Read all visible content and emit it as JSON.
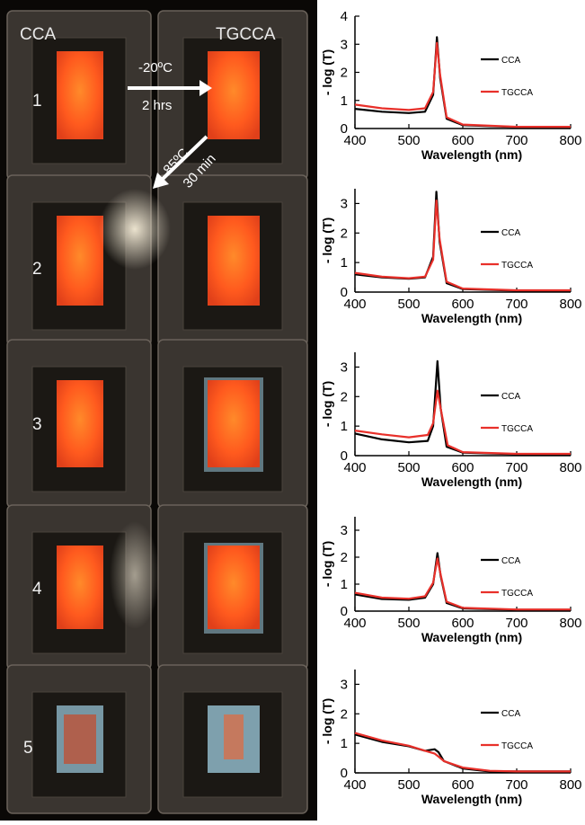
{
  "photo": {
    "col_labels": [
      "CCA",
      "TGCCA"
    ],
    "row_labels": [
      "1",
      "2",
      "3",
      "4",
      "5"
    ],
    "arrow1_line1": "-20ºC",
    "arrow1_line2": "2 hrs",
    "arrow2_line1": "85ºC",
    "arrow2_line2": "30 min",
    "colors": {
      "film": "#ff5a1e",
      "film_hot": "#ff8a2a",
      "frame": "#3a3530",
      "blue_tint": "#8fb8c8"
    }
  },
  "chart_data": [
    {
      "type": "line",
      "xlabel": "Wavelength (nm)",
      "ylabel": "- log (T)",
      "xlim": [
        400,
        800
      ],
      "ylim": [
        0,
        4
      ],
      "xticks": [
        400,
        500,
        600,
        700,
        800
      ],
      "yticks": [
        0,
        1,
        2,
        3,
        4
      ],
      "legend": "right",
      "series": [
        {
          "name": "CCA",
          "color": "#000000",
          "points": [
            [
              400,
              0.7
            ],
            [
              450,
              0.6
            ],
            [
              500,
              0.55
            ],
            [
              530,
              0.6
            ],
            [
              545,
              1.2
            ],
            [
              552,
              3.25
            ],
            [
              558,
              1.8
            ],
            [
              570,
              0.35
            ],
            [
              600,
              0.12
            ],
            [
              700,
              0.05
            ],
            [
              800,
              0.05
            ]
          ]
        },
        {
          "name": "TGCCA",
          "color": "#e8302a",
          "points": [
            [
              400,
              0.85
            ],
            [
              450,
              0.72
            ],
            [
              500,
              0.66
            ],
            [
              530,
              0.72
            ],
            [
              545,
              1.3
            ],
            [
              552,
              3.05
            ],
            [
              558,
              1.9
            ],
            [
              570,
              0.4
            ],
            [
              600,
              0.14
            ],
            [
              700,
              0.06
            ],
            [
              800,
              0.06
            ]
          ]
        }
      ]
    },
    {
      "type": "line",
      "xlabel": "Wavelength (nm)",
      "ylabel": "- log (T)",
      "xlim": [
        400,
        800
      ],
      "ylim": [
        0,
        3.5
      ],
      "xticks": [
        400,
        500,
        600,
        700,
        800
      ],
      "yticks": [
        0,
        1,
        2,
        3
      ],
      "legend": "right",
      "series": [
        {
          "name": "CCA",
          "color": "#000000",
          "points": [
            [
              400,
              0.6
            ],
            [
              450,
              0.5
            ],
            [
              500,
              0.45
            ],
            [
              530,
              0.5
            ],
            [
              545,
              1.2
            ],
            [
              551,
              3.4
            ],
            [
              557,
              1.7
            ],
            [
              570,
              0.3
            ],
            [
              600,
              0.1
            ],
            [
              700,
              0.05
            ],
            [
              800,
              0.05
            ]
          ]
        },
        {
          "name": "TGCCA",
          "color": "#e8302a",
          "points": [
            [
              400,
              0.65
            ],
            [
              450,
              0.52
            ],
            [
              500,
              0.47
            ],
            [
              530,
              0.52
            ],
            [
              545,
              1.1
            ],
            [
              551,
              3.1
            ],
            [
              557,
              1.8
            ],
            [
              570,
              0.35
            ],
            [
              600,
              0.12
            ],
            [
              700,
              0.06
            ],
            [
              800,
              0.06
            ]
          ]
        }
      ]
    },
    {
      "type": "line",
      "xlabel": "Wavelength (nm)",
      "ylabel": "- log (T)",
      "xlim": [
        400,
        800
      ],
      "ylim": [
        0,
        3.5
      ],
      "xticks": [
        400,
        500,
        600,
        700,
        800
      ],
      "yticks": [
        0,
        1,
        2,
        3
      ],
      "legend": "right",
      "series": [
        {
          "name": "CCA",
          "color": "#000000",
          "points": [
            [
              400,
              0.75
            ],
            [
              450,
              0.55
            ],
            [
              500,
              0.45
            ],
            [
              535,
              0.5
            ],
            [
              545,
              1.0
            ],
            [
              553,
              3.2
            ],
            [
              559,
              1.6
            ],
            [
              570,
              0.3
            ],
            [
              600,
              0.1
            ],
            [
              700,
              0.05
            ],
            [
              800,
              0.05
            ]
          ]
        },
        {
          "name": "TGCCA",
          "color": "#e8302a",
          "points": [
            [
              400,
              0.85
            ],
            [
              450,
              0.72
            ],
            [
              500,
              0.62
            ],
            [
              535,
              0.7
            ],
            [
              545,
              1.1
            ],
            [
              553,
              2.2
            ],
            [
              560,
              1.5
            ],
            [
              572,
              0.35
            ],
            [
              600,
              0.12
            ],
            [
              700,
              0.06
            ],
            [
              800,
              0.06
            ]
          ]
        }
      ]
    },
    {
      "type": "line",
      "xlabel": "Wavelength (nm)",
      "ylabel": "- log (T)",
      "xlim": [
        400,
        800
      ],
      "ylim": [
        0,
        3.5
      ],
      "xticks": [
        400,
        500,
        600,
        700,
        800
      ],
      "yticks": [
        0,
        1,
        2,
        3
      ],
      "legend": "right",
      "series": [
        {
          "name": "CCA",
          "color": "#000000",
          "points": [
            [
              400,
              0.62
            ],
            [
              450,
              0.45
            ],
            [
              500,
              0.42
            ],
            [
              530,
              0.5
            ],
            [
              545,
              1.0
            ],
            [
              553,
              2.15
            ],
            [
              559,
              1.3
            ],
            [
              570,
              0.3
            ],
            [
              600,
              0.1
            ],
            [
              700,
              0.05
            ],
            [
              800,
              0.05
            ]
          ]
        },
        {
          "name": "TGCCA",
          "color": "#e8302a",
          "points": [
            [
              400,
              0.68
            ],
            [
              450,
              0.5
            ],
            [
              500,
              0.46
            ],
            [
              530,
              0.55
            ],
            [
              545,
              1.05
            ],
            [
              553,
              1.95
            ],
            [
              559,
              1.35
            ],
            [
              570,
              0.35
            ],
            [
              600,
              0.12
            ],
            [
              700,
              0.06
            ],
            [
              800,
              0.06
            ]
          ]
        }
      ]
    },
    {
      "type": "line",
      "xlabel": "Wavelength (nm)",
      "ylabel": "- log (T)",
      "xlim": [
        400,
        800
      ],
      "ylim": [
        0,
        3.5
      ],
      "xticks": [
        400,
        500,
        600,
        700,
        800
      ],
      "yticks": [
        0,
        1,
        2,
        3
      ],
      "legend": "right",
      "series": [
        {
          "name": "CCA",
          "color": "#000000",
          "points": [
            [
              400,
              1.3
            ],
            [
              450,
              1.05
            ],
            [
              500,
              0.9
            ],
            [
              530,
              0.75
            ],
            [
              548,
              0.8
            ],
            [
              555,
              0.7
            ],
            [
              565,
              0.4
            ],
            [
              600,
              0.15
            ],
            [
              650,
              0.05
            ],
            [
              700,
              0.05
            ],
            [
              800,
              0.05
            ]
          ]
        },
        {
          "name": "TGCCA",
          "color": "#e8302a",
          "points": [
            [
              400,
              1.35
            ],
            [
              450,
              1.1
            ],
            [
              500,
              0.92
            ],
            [
              530,
              0.75
            ],
            [
              548,
              0.65
            ],
            [
              555,
              0.55
            ],
            [
              565,
              0.4
            ],
            [
              600,
              0.18
            ],
            [
              650,
              0.07
            ],
            [
              700,
              0.05
            ],
            [
              800,
              0.05
            ]
          ]
        }
      ]
    }
  ]
}
